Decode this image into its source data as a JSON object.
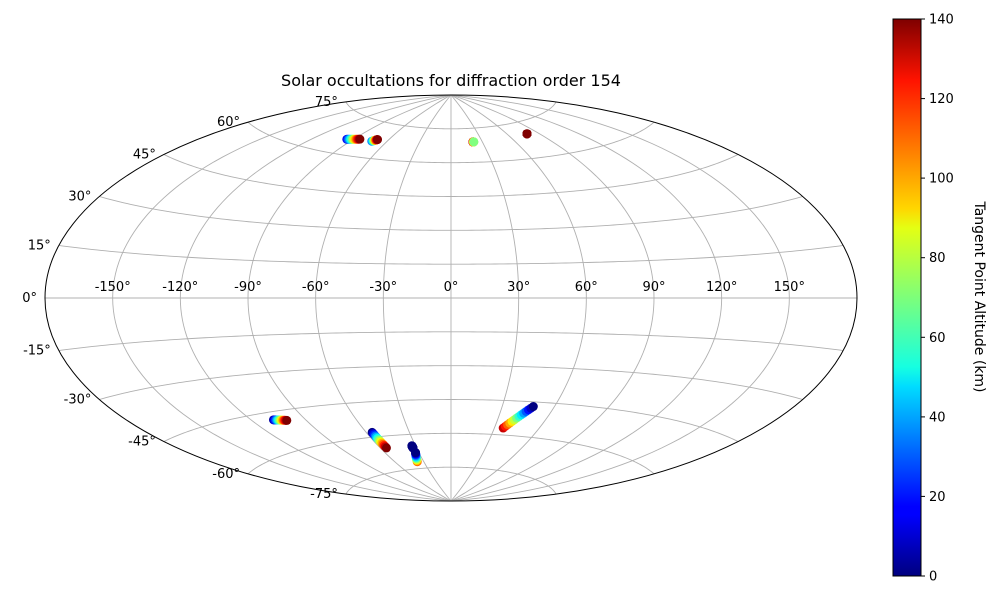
{
  "chart_data": {
    "type": "scatter",
    "projection": "aitoff",
    "title": "Solar occultations for diffraction order 154",
    "lon_tick_labels": [
      "-150°",
      "-120°",
      "-90°",
      "-60°",
      "-30°",
      "0°",
      "30°",
      "60°",
      "90°",
      "120°",
      "150°"
    ],
    "lat_tick_labels": [
      "75°",
      "60°",
      "45°",
      "30°",
      "15°",
      "0°",
      "-15°",
      "-30°",
      "-45°",
      "-60°",
      "-75°"
    ],
    "grid": true,
    "colorbar": {
      "label": "Tangent Point Altitude (km)",
      "colormap": "jet",
      "range": [
        0,
        140
      ],
      "tick_labels": [
        "0",
        "20",
        "40",
        "60",
        "80",
        "100",
        "120",
        "140"
      ]
    },
    "tracks": [
      {
        "lon_start": -95,
        "lat_start": 66,
        "alt_start": 15,
        "lon_end": -85,
        "lat_end": 67,
        "alt_end": 140
      },
      {
        "lon_start": -73,
        "lat_start": 67,
        "alt_start": 30,
        "lon_end": -70,
        "lat_end": 68,
        "alt_end": 140
      },
      {
        "lon_start": 21,
        "lat_start": 69,
        "alt_start": 140,
        "lon_end": 22,
        "lat_end": 69,
        "alt_end": 70
      },
      {
        "lon_start": 79,
        "lat_start": 70,
        "alt_start": 140,
        "lon_end": 79,
        "lat_end": 70,
        "alt_end": 140
      },
      {
        "lon_start": -108,
        "lat_start": -48,
        "alt_start": 5,
        "lon_end": -101,
        "lat_end": -49,
        "alt_end": 140
      },
      {
        "lon_start": -56,
        "lat_start": -58,
        "alt_start": 0,
        "lon_end": -55,
        "lat_end": -65,
        "alt_end": 140
      },
      {
        "lon_start": -37,
        "lat_start": -72,
        "alt_start": 110,
        "lon_end": -33,
        "lat_end": -68,
        "alt_end": 0
      },
      {
        "lon_start": -33,
        "lat_start": -66,
        "alt_start": 0,
        "lon_end": -33,
        "lat_end": -65,
        "alt_end": 0
      },
      {
        "lon_start": 36,
        "lat_start": -57,
        "alt_start": 130,
        "lon_end": 48,
        "lat_end": -47,
        "alt_end": 0
      }
    ]
  }
}
